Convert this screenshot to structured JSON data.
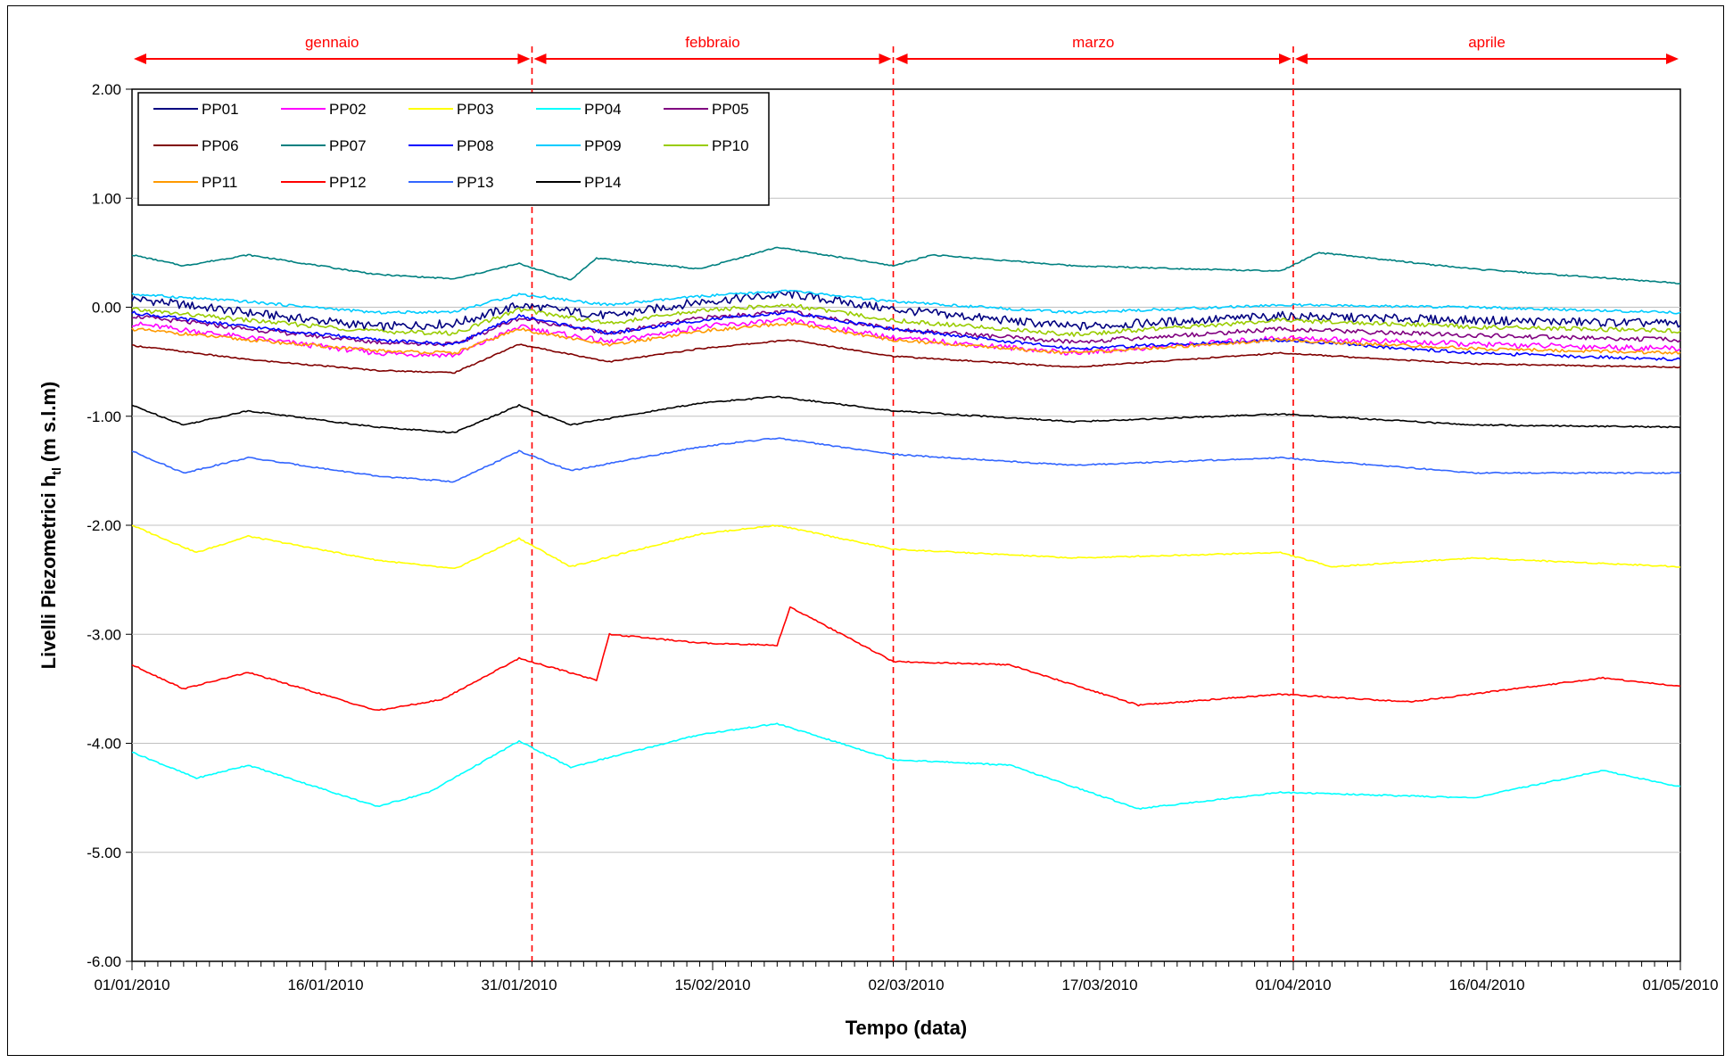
{
  "chart_data": {
    "type": "line",
    "title": "",
    "xlabel": "Tempo (data)",
    "ylabel_main": "Livelli Piezometrici h",
    "ylabel_sub": "tl",
    "ylabel_unit": "(m s.l.m)",
    "xlim": [
      "2010-01-01",
      "2010-05-01"
    ],
    "ylim": [
      -6,
      2
    ],
    "grid": "horizontal",
    "legend_position": "top-left",
    "y_ticks": [
      {
        "value": 2,
        "label": "2.00"
      },
      {
        "value": 1,
        "label": "1.00"
      },
      {
        "value": 0,
        "label": "0.00"
      },
      {
        "value": -1,
        "label": "-1.00"
      },
      {
        "value": -2,
        "label": "-2.00"
      },
      {
        "value": -3,
        "label": "-3.00"
      },
      {
        "value": -4,
        "label": "-4.00"
      },
      {
        "value": -5,
        "label": "-5.00"
      },
      {
        "value": -6,
        "label": "-6.00"
      }
    ],
    "x_ticks": [
      {
        "value": "2010-01-01",
        "label": "01/01/2010"
      },
      {
        "value": "2010-01-16",
        "label": "16/01/2010"
      },
      {
        "value": "2010-01-31",
        "label": "31/01/2010"
      },
      {
        "value": "2010-02-15",
        "label": "15/02/2010"
      },
      {
        "value": "2010-03-02",
        "label": "02/03/2010"
      },
      {
        "value": "2010-03-17",
        "label": "17/03/2010"
      },
      {
        "value": "2010-04-01",
        "label": "01/04/2010"
      },
      {
        "value": "2010-04-16",
        "label": "16/04/2010"
      },
      {
        "value": "2010-05-01",
        "label": "01/05/2010"
      }
    ],
    "months": [
      {
        "label": "gennaio",
        "start": "2010-01-01",
        "end": "2010-02-01"
      },
      {
        "label": "febbraio",
        "start": "2010-02-01",
        "end": "2010-03-01"
      },
      {
        "label": "marzo",
        "start": "2010-03-01",
        "end": "2010-04-01"
      },
      {
        "label": "aprile",
        "start": "2010-04-01",
        "end": "2010-05-01"
      }
    ],
    "month_boundaries": [
      "2010-02-01",
      "2010-03-01",
      "2010-04-01"
    ],
    "series": [
      {
        "name": "PP01",
        "color": "#000080",
        "x": [
          "2010-01-01",
          "2010-01-10",
          "2010-01-20",
          "2010-01-26",
          "2010-01-31",
          "2010-02-07",
          "2010-02-14",
          "2010-02-21",
          "2010-03-01",
          "2010-03-15",
          "2010-03-31",
          "2010-04-15",
          "2010-05-01"
        ],
        "y": [
          0.08,
          -0.05,
          -0.18,
          -0.15,
          0.02,
          -0.08,
          0.05,
          0.12,
          -0.02,
          -0.18,
          -0.08,
          -0.12,
          -0.15
        ]
      },
      {
        "name": "PP02",
        "color": "#ff00ff",
        "x": [
          "2010-01-01",
          "2010-01-10",
          "2010-01-20",
          "2010-01-26",
          "2010-01-31",
          "2010-02-07",
          "2010-02-14",
          "2010-02-21",
          "2010-03-01",
          "2010-03-15",
          "2010-03-31",
          "2010-04-15",
          "2010-05-01"
        ],
        "y": [
          -0.15,
          -0.28,
          -0.42,
          -0.44,
          -0.18,
          -0.32,
          -0.18,
          -0.12,
          -0.28,
          -0.42,
          -0.28,
          -0.34,
          -0.38
        ]
      },
      {
        "name": "PP03",
        "color": "#ffff00",
        "x": [
          "2010-01-01",
          "2010-01-06",
          "2010-01-10",
          "2010-01-20",
          "2010-01-26",
          "2010-01-31",
          "2010-02-04",
          "2010-02-14",
          "2010-02-20",
          "2010-03-01",
          "2010-03-15",
          "2010-03-31",
          "2010-04-04",
          "2010-04-15",
          "2010-05-01"
        ],
        "y": [
          -2.0,
          -2.25,
          -2.1,
          -2.32,
          -2.4,
          -2.12,
          -2.38,
          -2.08,
          -2.0,
          -2.22,
          -2.3,
          -2.25,
          -2.38,
          -2.3,
          -2.38
        ]
      },
      {
        "name": "PP04",
        "color": "#00ffff",
        "x": [
          "2010-01-01",
          "2010-01-06",
          "2010-01-10",
          "2010-01-20",
          "2010-01-24",
          "2010-01-31",
          "2010-02-04",
          "2010-02-14",
          "2010-02-20",
          "2010-03-01",
          "2010-03-10",
          "2010-03-20",
          "2010-03-31",
          "2010-04-15",
          "2010-04-25",
          "2010-05-01"
        ],
        "y": [
          -4.08,
          -4.32,
          -4.2,
          -4.58,
          -4.45,
          -3.98,
          -4.22,
          -3.92,
          -3.82,
          -4.15,
          -4.2,
          -4.6,
          -4.45,
          -4.5,
          -4.25,
          -4.4
        ]
      },
      {
        "name": "PP05",
        "color": "#800080",
        "x": [
          "2010-01-01",
          "2010-01-10",
          "2010-01-20",
          "2010-01-26",
          "2010-01-31",
          "2010-02-07",
          "2010-02-14",
          "2010-02-21",
          "2010-03-01",
          "2010-03-15",
          "2010-03-31",
          "2010-04-15",
          "2010-05-01"
        ],
        "y": [
          -0.08,
          -0.2,
          -0.32,
          -0.34,
          -0.1,
          -0.24,
          -0.1,
          -0.04,
          -0.2,
          -0.32,
          -0.2,
          -0.26,
          -0.3
        ]
      },
      {
        "name": "PP06",
        "color": "#800000",
        "x": [
          "2010-01-01",
          "2010-01-10",
          "2010-01-20",
          "2010-01-26",
          "2010-01-31",
          "2010-02-07",
          "2010-02-14",
          "2010-02-21",
          "2010-03-01",
          "2010-03-15",
          "2010-03-31",
          "2010-04-15",
          "2010-05-01"
        ],
        "y": [
          -0.35,
          -0.48,
          -0.58,
          -0.6,
          -0.34,
          -0.5,
          -0.38,
          -0.3,
          -0.45,
          -0.55,
          -0.42,
          -0.52,
          -0.55
        ]
      },
      {
        "name": "PP07",
        "color": "#008080",
        "x": [
          "2010-01-01",
          "2010-01-05",
          "2010-01-10",
          "2010-01-20",
          "2010-01-26",
          "2010-01-31",
          "2010-02-04",
          "2010-02-06",
          "2010-02-14",
          "2010-02-20",
          "2010-03-01",
          "2010-03-04",
          "2010-03-15",
          "2010-03-31",
          "2010-04-03",
          "2010-04-15",
          "2010-05-01"
        ],
        "y": [
          0.48,
          0.38,
          0.48,
          0.3,
          0.26,
          0.4,
          0.25,
          0.45,
          0.35,
          0.55,
          0.38,
          0.48,
          0.38,
          0.33,
          0.5,
          0.35,
          0.22
        ]
      },
      {
        "name": "PP08",
        "color": "#0000ff",
        "x": [
          "2010-01-01",
          "2010-01-10",
          "2010-01-20",
          "2010-01-26",
          "2010-01-31",
          "2010-02-07",
          "2010-02-14",
          "2010-02-21",
          "2010-03-01",
          "2010-03-15",
          "2010-03-31",
          "2010-04-15",
          "2010-05-01"
        ],
        "y": [
          -0.05,
          -0.18,
          -0.3,
          -0.34,
          -0.08,
          -0.24,
          -0.12,
          -0.05,
          -0.2,
          -0.38,
          -0.3,
          -0.42,
          -0.48
        ]
      },
      {
        "name": "PP09",
        "color": "#00ccff",
        "x": [
          "2010-01-01",
          "2010-01-10",
          "2010-01-20",
          "2010-01-26",
          "2010-01-31",
          "2010-02-07",
          "2010-02-14",
          "2010-02-21",
          "2010-03-01",
          "2010-03-15",
          "2010-03-31",
          "2010-04-15",
          "2010-05-01"
        ],
        "y": [
          0.12,
          0.05,
          -0.05,
          -0.04,
          0.12,
          0.02,
          0.1,
          0.15,
          0.05,
          -0.05,
          0.02,
          0.0,
          -0.05
        ]
      },
      {
        "name": "PP10",
        "color": "#99cc00",
        "x": [
          "2010-01-01",
          "2010-01-10",
          "2010-01-20",
          "2010-01-26",
          "2010-01-31",
          "2010-02-07",
          "2010-02-14",
          "2010-02-21",
          "2010-03-01",
          "2010-03-15",
          "2010-03-31",
          "2010-04-15",
          "2010-05-01"
        ],
        "y": [
          -0.02,
          -0.12,
          -0.22,
          -0.24,
          -0.02,
          -0.15,
          -0.03,
          0.02,
          -0.12,
          -0.25,
          -0.12,
          -0.18,
          -0.22
        ]
      },
      {
        "name": "PP11",
        "color": "#ff9900",
        "x": [
          "2010-01-01",
          "2010-01-10",
          "2010-01-20",
          "2010-01-26",
          "2010-01-31",
          "2010-02-07",
          "2010-02-14",
          "2010-02-21",
          "2010-03-01",
          "2010-03-15",
          "2010-03-31",
          "2010-04-15",
          "2010-05-01"
        ],
        "y": [
          -0.2,
          -0.3,
          -0.4,
          -0.42,
          -0.2,
          -0.35,
          -0.22,
          -0.15,
          -0.3,
          -0.42,
          -0.3,
          -0.38,
          -0.42
        ]
      },
      {
        "name": "PP12",
        "color": "#ff0000",
        "x": [
          "2010-01-01",
          "2010-01-05",
          "2010-01-10",
          "2010-01-20",
          "2010-01-25",
          "2010-01-31",
          "2010-02-06",
          "2010-02-07",
          "2010-02-14",
          "2010-02-20",
          "2010-02-21",
          "2010-03-01",
          "2010-03-10",
          "2010-03-20",
          "2010-03-31",
          "2010-04-10",
          "2010-04-25",
          "2010-05-01"
        ],
        "y": [
          -3.28,
          -3.5,
          -3.35,
          -3.7,
          -3.6,
          -3.22,
          -3.42,
          -3.0,
          -3.08,
          -3.1,
          -2.75,
          -3.25,
          -3.28,
          -3.65,
          -3.55,
          -3.62,
          -3.4,
          -3.48
        ]
      },
      {
        "name": "PP13",
        "color": "#3366ff",
        "x": [
          "2010-01-01",
          "2010-01-05",
          "2010-01-10",
          "2010-01-20",
          "2010-01-26",
          "2010-01-31",
          "2010-02-04",
          "2010-02-14",
          "2010-02-20",
          "2010-03-01",
          "2010-03-15",
          "2010-03-31",
          "2010-04-15",
          "2010-05-01"
        ],
        "y": [
          -1.32,
          -1.52,
          -1.38,
          -1.55,
          -1.6,
          -1.32,
          -1.5,
          -1.28,
          -1.2,
          -1.35,
          -1.45,
          -1.38,
          -1.52,
          -1.52
        ]
      },
      {
        "name": "PP14",
        "color": "#000000",
        "x": [
          "2010-01-01",
          "2010-01-05",
          "2010-01-10",
          "2010-01-20",
          "2010-01-26",
          "2010-01-31",
          "2010-02-04",
          "2010-02-14",
          "2010-02-20",
          "2010-03-01",
          "2010-03-15",
          "2010-03-31",
          "2010-04-15",
          "2010-05-01"
        ],
        "y": [
          -0.9,
          -1.08,
          -0.95,
          -1.1,
          -1.15,
          -0.9,
          -1.08,
          -0.88,
          -0.82,
          -0.95,
          -1.05,
          -0.98,
          -1.08,
          -1.1
        ]
      }
    ]
  }
}
